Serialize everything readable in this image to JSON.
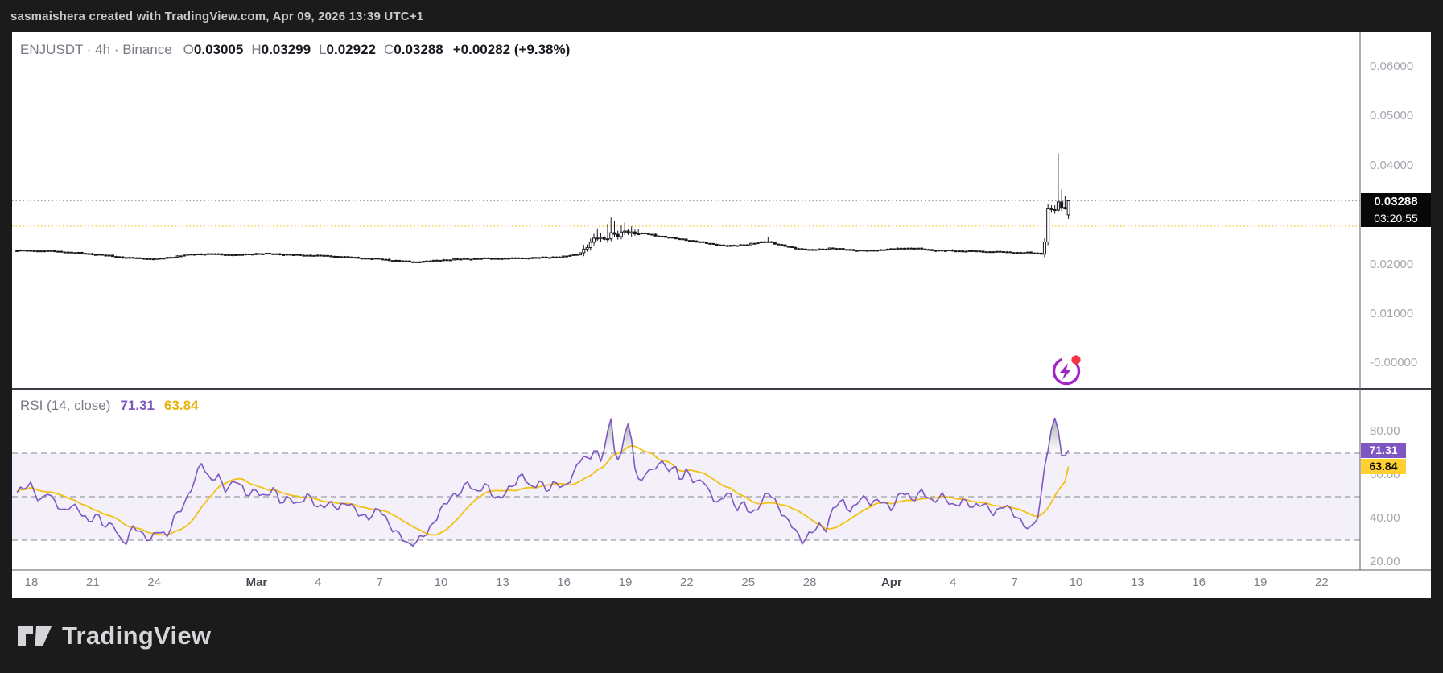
{
  "attribution": "sasmaishera created with TradingView.com, Apr 09, 2026 13:39 UTC+1",
  "header": {
    "symbol": "ENJUSDT · 4h · Binance",
    "ohlc": [
      {
        "label": "O",
        "value": "0.03005"
      },
      {
        "label": "H",
        "value": "0.03299"
      },
      {
        "label": "L",
        "value": "0.02922"
      },
      {
        "label": "C",
        "value": "0.03288"
      }
    ],
    "change": "+0.00282 (+9.38%)"
  },
  "footer": {
    "logo_text": "TradingView"
  },
  "colors": {
    "background_dark": "#1B1B1B",
    "panel_white": "#FFFFFF",
    "candle": "#17191F",
    "up_body_fill": "#FFFFFF",
    "rsi_line": "#7E57C2",
    "rsi_ma_line": "#F2C115",
    "rsi_band_fill": "rgba(126,87,194,0.09)",
    "rsi_label_bg": "#7E57C2",
    "ma_label_bg": "#FFD02F",
    "price_label_bg": "#070707",
    "boost_purple": "#A126C8",
    "boost_red": "#F23645",
    "axis_text": "#A4A7AE",
    "dashed_line": "#9A9DA5",
    "yellow_dotted_line": "#F2C115",
    "separator": "#3A3D45",
    "axis_border": "#5A5D65"
  },
  "chart_data": {
    "type": "candlestick",
    "title": "ENJUSDT 4h Binance with RSI(14) sub-pane",
    "x_axis": {
      "start_date": "Feb 18",
      "labels": [
        {
          "label": "18",
          "day": 0
        },
        {
          "label": "21",
          "day": 3
        },
        {
          "label": "24",
          "day": 6
        },
        {
          "label": "Mar",
          "day": 11,
          "major": true
        },
        {
          "label": "4",
          "day": 14
        },
        {
          "label": "7",
          "day": 17
        },
        {
          "label": "10",
          "day": 20
        },
        {
          "label": "13",
          "day": 23
        },
        {
          "label": "16",
          "day": 26
        },
        {
          "label": "19",
          "day": 29
        },
        {
          "label": "22",
          "day": 32
        },
        {
          "label": "25",
          "day": 35
        },
        {
          "label": "28",
          "day": 38
        },
        {
          "label": "Apr",
          "day": 42,
          "major": true
        },
        {
          "label": "4",
          "day": 45
        },
        {
          "label": "7",
          "day": 48
        },
        {
          "label": "10",
          "day": 51
        },
        {
          "label": "13",
          "day": 54
        },
        {
          "label": "16",
          "day": 57
        },
        {
          "label": "19",
          "day": 60
        },
        {
          "label": "22",
          "day": 63
        }
      ]
    },
    "price_pane": {
      "ylim": [
        -0.002,
        0.065
      ],
      "yticks": [
        {
          "label": "0.06000",
          "value": 0.06
        },
        {
          "label": "0.05000",
          "value": 0.05
        },
        {
          "label": "0.04000",
          "value": 0.04
        },
        {
          "label": "0.02000",
          "value": 0.02
        },
        {
          "label": "0.01000",
          "value": 0.01
        },
        {
          "label": "-0.00000",
          "value": 0.0
        }
      ],
      "price_line": {
        "value": 0.03288,
        "label": "0.03288",
        "countdown": "03:20:55"
      },
      "yellow_line_value": 0.02776,
      "start_day": -0.7,
      "end_day": 50.57,
      "candles_per_day": 6,
      "anchors": [
        [
          -0.7,
          0.0228
        ],
        [
          0,
          0.0228
        ],
        [
          1,
          0.0227
        ],
        [
          2,
          0.0224
        ],
        [
          3,
          0.0221
        ],
        [
          4,
          0.0217
        ],
        [
          4.5,
          0.0214
        ],
        [
          5.5,
          0.0212
        ],
        [
          6,
          0.0211
        ],
        [
          6.5,
          0.0213
        ],
        [
          7,
          0.0216
        ],
        [
          7.5,
          0.0219
        ],
        [
          8,
          0.0221
        ],
        [
          9,
          0.0221
        ],
        [
          10,
          0.0219
        ],
        [
          11,
          0.0222
        ],
        [
          12,
          0.0221
        ],
        [
          13,
          0.0219
        ],
        [
          14,
          0.0218
        ],
        [
          15,
          0.0216
        ],
        [
          16,
          0.0213
        ],
        [
          17,
          0.0211
        ],
        [
          18,
          0.0207
        ],
        [
          18.7,
          0.0205
        ],
        [
          19.5,
          0.0207
        ],
        [
          20,
          0.0209
        ],
        [
          21,
          0.0211
        ],
        [
          22,
          0.0212
        ],
        [
          23,
          0.0212
        ],
        [
          24,
          0.0213
        ],
        [
          25,
          0.0214
        ],
        [
          26,
          0.0216
        ],
        [
          26.7,
          0.0221
        ],
        [
          27.1,
          0.0235
        ],
        [
          27.4,
          0.0248
        ],
        [
          27.7,
          0.0256
        ],
        [
          28,
          0.025
        ],
        [
          28.3,
          0.0264
        ],
        [
          28.6,
          0.0257
        ],
        [
          29,
          0.0267
        ],
        [
          29.4,
          0.0264
        ],
        [
          30,
          0.0262
        ],
        [
          30.5,
          0.0258
        ],
        [
          31,
          0.0256
        ],
        [
          31.5,
          0.0252
        ],
        [
          32,
          0.025
        ],
        [
          32.5,
          0.0246
        ],
        [
          33,
          0.0243
        ],
        [
          33.5,
          0.024
        ],
        [
          34,
          0.0237
        ],
        [
          34.5,
          0.0239
        ],
        [
          35,
          0.0241
        ],
        [
          35.5,
          0.0244
        ],
        [
          36,
          0.0247
        ],
        [
          36.4,
          0.0241
        ],
        [
          37,
          0.0235
        ],
        [
          37.5,
          0.0232
        ],
        [
          38,
          0.0229
        ],
        [
          38.5,
          0.0231
        ],
        [
          39,
          0.0233
        ],
        [
          39.5,
          0.0231
        ],
        [
          40,
          0.023
        ],
        [
          40.5,
          0.0228
        ],
        [
          41,
          0.0228
        ],
        [
          41.5,
          0.023
        ],
        [
          42,
          0.0231
        ],
        [
          42.5,
          0.0233
        ],
        [
          43,
          0.0233
        ],
        [
          43.5,
          0.0231
        ],
        [
          44,
          0.0229
        ],
        [
          44.5,
          0.0228
        ],
        [
          45,
          0.0228
        ],
        [
          45.5,
          0.0227
        ],
        [
          46,
          0.0227
        ],
        [
          46.5,
          0.0226
        ],
        [
          47,
          0.0226
        ],
        [
          47.5,
          0.0225
        ],
        [
          48,
          0.0224
        ],
        [
          48.5,
          0.0224
        ],
        [
          49,
          0.0223
        ],
        [
          49.3,
          0.0222
        ],
        [
          49.45,
          0.024
        ],
        [
          49.6,
          0.031
        ],
        [
          49.75,
          0.0316
        ],
        [
          49.9,
          0.0305
        ],
        [
          50.05,
          0.0312
        ],
        [
          50.2,
          0.033
        ],
        [
          50.3,
          0.0318
        ],
        [
          50.4,
          0.0308
        ],
        [
          50.57,
          0.03288
        ]
      ],
      "wick_highs": [
        [
          27.4,
          0.0262
        ],
        [
          27.7,
          0.0273
        ],
        [
          28.05,
          0.0282
        ],
        [
          28.3,
          0.0295
        ],
        [
          28.45,
          0.0288
        ],
        [
          28.75,
          0.0279
        ],
        [
          29.0,
          0.0285
        ],
        [
          29.3,
          0.0277
        ],
        [
          29.6,
          0.0272
        ],
        [
          35.9,
          0.0256
        ],
        [
          49.6,
          0.0318
        ],
        [
          50.05,
          0.034
        ],
        [
          50.2,
          0.0425
        ],
        [
          50.35,
          0.0352
        ],
        [
          50.45,
          0.0338
        ]
      ],
      "last_candle": {
        "open": 0.03005,
        "high": 0.03299,
        "low": 0.02922,
        "close": 0.03288
      }
    },
    "rsi_pane": {
      "title": "RSI (14, close)",
      "rsi_value": "71.31",
      "ma_value": "63.84",
      "last_rsi": 71.31,
      "last_ma": 63.84,
      "ylim": [
        15,
        100
      ],
      "yticks": [
        {
          "label": "80.00",
          "value": 80
        },
        {
          "label": "60.00",
          "value": 60
        },
        {
          "label": "40.00",
          "value": 40
        },
        {
          "label": "20.00",
          "value": 20
        }
      ],
      "bands": [
        70,
        50,
        30
      ],
      "anchors": [
        [
          -0.7,
          52
        ],
        [
          0,
          55
        ],
        [
          0.4,
          48
        ],
        [
          0.8,
          53
        ],
        [
          1.2,
          46
        ],
        [
          1.6,
          42
        ],
        [
          2,
          47
        ],
        [
          2.4,
          44
        ],
        [
          2.8,
          38
        ],
        [
          3.2,
          41
        ],
        [
          3.6,
          36
        ],
        [
          4,
          39
        ],
        [
          4.3,
          31
        ],
        [
          4.6,
          28
        ],
        [
          5,
          36
        ],
        [
          5.4,
          33
        ],
        [
          5.8,
          31
        ],
        [
          6.2,
          35
        ],
        [
          6.6,
          30
        ],
        [
          7,
          41
        ],
        [
          7.5,
          48
        ],
        [
          8,
          58
        ],
        [
          8.3,
          65
        ],
        [
          8.7,
          57
        ],
        [
          9.1,
          61
        ],
        [
          9.5,
          53
        ],
        [
          10,
          57
        ],
        [
          10.5,
          51
        ],
        [
          11,
          54
        ],
        [
          11.4,
          49
        ],
        [
          11.8,
          53
        ],
        [
          12.2,
          47
        ],
        [
          12.6,
          51
        ],
        [
          13,
          46
        ],
        [
          13.5,
          50
        ],
        [
          14,
          45
        ],
        [
          14.5,
          48
        ],
        [
          15,
          44
        ],
        [
          15.5,
          47
        ],
        [
          16,
          43
        ],
        [
          16.5,
          40
        ],
        [
          17,
          44
        ],
        [
          17.5,
          37
        ],
        [
          18,
          33
        ],
        [
          18.5,
          26
        ],
        [
          18.8,
          29
        ],
        [
          19.2,
          33
        ],
        [
          19.6,
          38
        ],
        [
          20,
          44
        ],
        [
          20.5,
          49
        ],
        [
          21,
          53
        ],
        [
          21.3,
          58
        ],
        [
          21.7,
          51
        ],
        [
          22.2,
          55
        ],
        [
          22.7,
          49
        ],
        [
          23.2,
          53
        ],
        [
          23.7,
          56
        ],
        [
          24,
          60
        ],
        [
          24.4,
          54
        ],
        [
          24.8,
          58
        ],
        [
          25.2,
          52
        ],
        [
          25.6,
          56
        ],
        [
          26,
          54
        ],
        [
          26.5,
          62
        ],
        [
          26.9,
          69
        ],
        [
          27.2,
          65
        ],
        [
          27.5,
          72
        ],
        [
          27.8,
          67
        ],
        [
          28.05,
          77
        ],
        [
          28.3,
          86
        ],
        [
          28.5,
          70
        ],
        [
          28.7,
          64
        ],
        [
          28.9,
          73
        ],
        [
          29.05,
          87
        ],
        [
          29.3,
          75
        ],
        [
          29.5,
          62
        ],
        [
          29.8,
          57
        ],
        [
          30.1,
          64
        ],
        [
          30.4,
          60
        ],
        [
          30.7,
          67
        ],
        [
          31,
          62
        ],
        [
          31.4,
          65
        ],
        [
          31.7,
          58
        ],
        [
          32,
          62
        ],
        [
          32.4,
          55
        ],
        [
          32.8,
          58
        ],
        [
          33.2,
          51
        ],
        [
          33.6,
          47
        ],
        [
          34,
          52
        ],
        [
          34.4,
          44
        ],
        [
          34.8,
          48
        ],
        [
          35.2,
          42
        ],
        [
          35.6,
          46
        ],
        [
          36,
          52
        ],
        [
          36.4,
          47
        ],
        [
          36.8,
          41
        ],
        [
          37.2,
          36
        ],
        [
          37.6,
          28
        ],
        [
          38,
          33
        ],
        [
          38.4,
          38
        ],
        [
          38.8,
          35
        ],
        [
          39.2,
          45
        ],
        [
          39.6,
          48
        ],
        [
          40,
          44
        ],
        [
          40.5,
          50
        ],
        [
          41,
          46
        ],
        [
          41.5,
          49
        ],
        [
          42,
          45
        ],
        [
          42.5,
          52
        ],
        [
          43,
          48
        ],
        [
          43.5,
          54
        ],
        [
          44,
          47
        ],
        [
          44.5,
          50
        ],
        [
          45,
          46
        ],
        [
          45.5,
          49
        ],
        [
          46,
          44
        ],
        [
          46.5,
          47
        ],
        [
          47,
          43
        ],
        [
          47.5,
          46
        ],
        [
          48,
          41
        ],
        [
          48.4,
          38
        ],
        [
          48.8,
          36
        ],
        [
          49.2,
          42
        ],
        [
          49.5,
          65
        ],
        [
          49.8,
          80
        ],
        [
          50.05,
          88
        ],
        [
          50.2,
          78
        ],
        [
          50.35,
          66
        ],
        [
          50.45,
          68
        ],
        [
          50.57,
          71.31
        ]
      ]
    }
  }
}
